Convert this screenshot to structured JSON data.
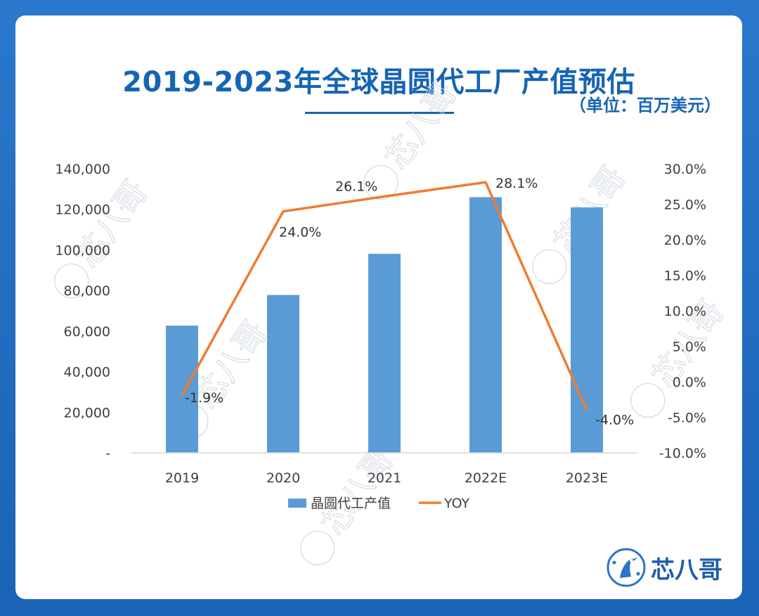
{
  "title": "2019-2023年全球晶圆代工厂产值预估",
  "unit_note": "（单位：百万美元）",
  "logo_text": "芯八哥",
  "watermark_text": "芯八哥",
  "colors": {
    "bar": "#5b9bd5",
    "line": "#ed7d31",
    "title": "#1565b4",
    "background": "#1f6fc4"
  },
  "chart_data": {
    "type": "bar",
    "categories": [
      "2019",
      "2020",
      "2021",
      "2022E",
      "2023E"
    ],
    "series": [
      {
        "name": "晶圆代工产值",
        "type": "bar",
        "axis": "left",
        "values": [
          62700,
          77800,
          98100,
          126000,
          121000
        ]
      },
      {
        "name": "YOY",
        "type": "line",
        "axis": "right",
        "values": [
          -1.9,
          24.0,
          26.1,
          28.1,
          -4.0
        ],
        "labels": [
          "-1.9%",
          "24.0%",
          "26.1%",
          "28.1%",
          "-4.0%"
        ]
      }
    ],
    "left_axis": {
      "ylim": [
        0,
        140000
      ],
      "ticks": [
        0,
        20000,
        40000,
        60000,
        80000,
        100000,
        120000,
        140000
      ],
      "tick_labels": [
        "-",
        "20,000",
        "40,000",
        "60,000",
        "80,000",
        "100,000",
        "120,000",
        "140,000"
      ]
    },
    "right_axis": {
      "ylim": [
        -10,
        30
      ],
      "ticks": [
        -10,
        -5,
        0,
        5,
        10,
        15,
        20,
        25,
        30
      ],
      "tick_labels": [
        "-10.0%",
        "-5.0%",
        "0.0%",
        "5.0%",
        "10.0%",
        "15.0%",
        "20.0%",
        "25.0%",
        "30.0%"
      ]
    },
    "grid": false,
    "legend": "bottom"
  }
}
